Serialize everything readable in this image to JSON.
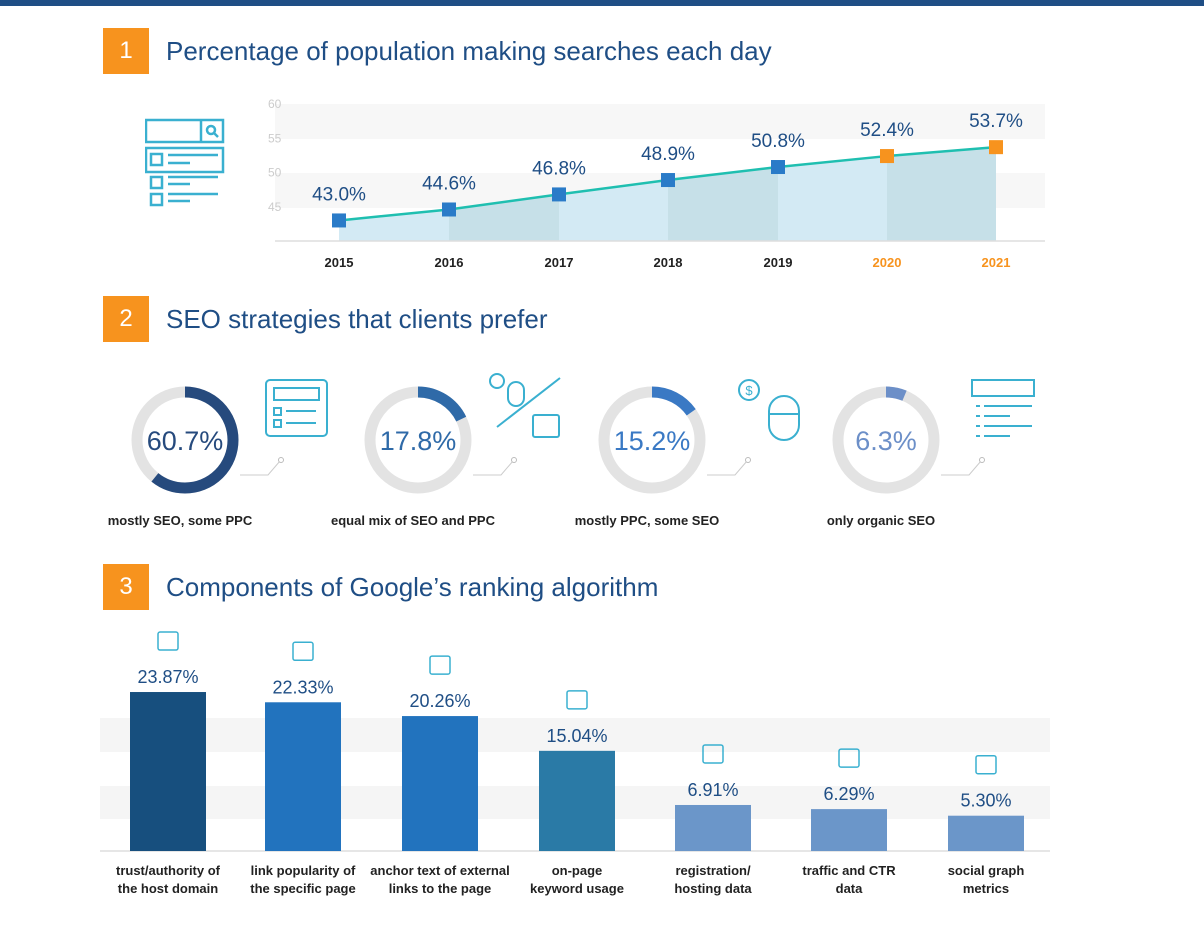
{
  "sections": [
    {
      "number": "1",
      "title": "Percentage of population making searches each day"
    },
    {
      "number": "2",
      "title": "SEO strategies that clients prefer"
    },
    {
      "number": "3",
      "title": "Components of Google’s ranking algorithm"
    }
  ],
  "chart_data": [
    {
      "type": "line",
      "title": "Percentage of population making searches each day",
      "x": [
        "2015",
        "2016",
        "2017",
        "2018",
        "2019",
        "2020",
        "2021"
      ],
      "values": [
        43.0,
        44.6,
        46.8,
        48.9,
        50.8,
        52.4,
        53.7
      ],
      "data_labels": [
        "43.0%",
        "44.6%",
        "46.8%",
        "48.9%",
        "50.8%",
        "52.4%",
        "53.7%"
      ],
      "projected": [
        false,
        false,
        false,
        false,
        false,
        true,
        true
      ],
      "yticks": [
        "60",
        "55",
        "50",
        "45"
      ],
      "ylim": [
        40,
        60
      ],
      "colors": {
        "line": "#1fbfb0",
        "actual": "#2a7bc8",
        "projected": "#f7931e"
      }
    },
    {
      "type": "pie",
      "title": "SEO strategies that clients prefer",
      "categories": [
        "mostly SEO, some PPC",
        "equal mix of SEO and PPC",
        "mostly PPC, some SEO",
        "only organic SEO"
      ],
      "values": [
        60.7,
        17.8,
        15.2,
        6.3
      ],
      "data_labels": [
        "60.7%",
        "17.8%",
        "15.2%",
        "6.3%"
      ],
      "colors": [
        "#264a7d",
        "#2f6aa8",
        "#3a79c4",
        "#6c8fc8"
      ]
    },
    {
      "type": "bar",
      "title": "Components of Google’s ranking algorithm",
      "categories": [
        [
          "trust/authority of",
          "the host domain"
        ],
        [
          "link popularity of",
          "the specific page"
        ],
        [
          "anchor text of external",
          "links to the page"
        ],
        [
          "on-page",
          "keyword usage"
        ],
        [
          "registration/",
          "hosting data"
        ],
        [
          "traffic and CTR",
          "data"
        ],
        [
          "social graph",
          "metrics"
        ]
      ],
      "values": [
        23.87,
        22.33,
        20.26,
        15.04,
        6.91,
        6.29,
        5.3
      ],
      "data_labels": [
        "23.87%",
        "22.33%",
        "20.26%",
        "15.04%",
        "6.91%",
        "6.29%",
        "5.30%"
      ],
      "icons": [
        "www-browser-icon",
        "link-icon",
        "anchor-icon",
        "key-icon",
        "database-icon",
        "analytics-icon",
        "social-graph-icon"
      ],
      "colors": [
        "#174f7e",
        "#2273be",
        "#2273be",
        "#2a7aa6",
        "#6b96c9",
        "#6b96c9",
        "#6b96c9"
      ]
    }
  ]
}
